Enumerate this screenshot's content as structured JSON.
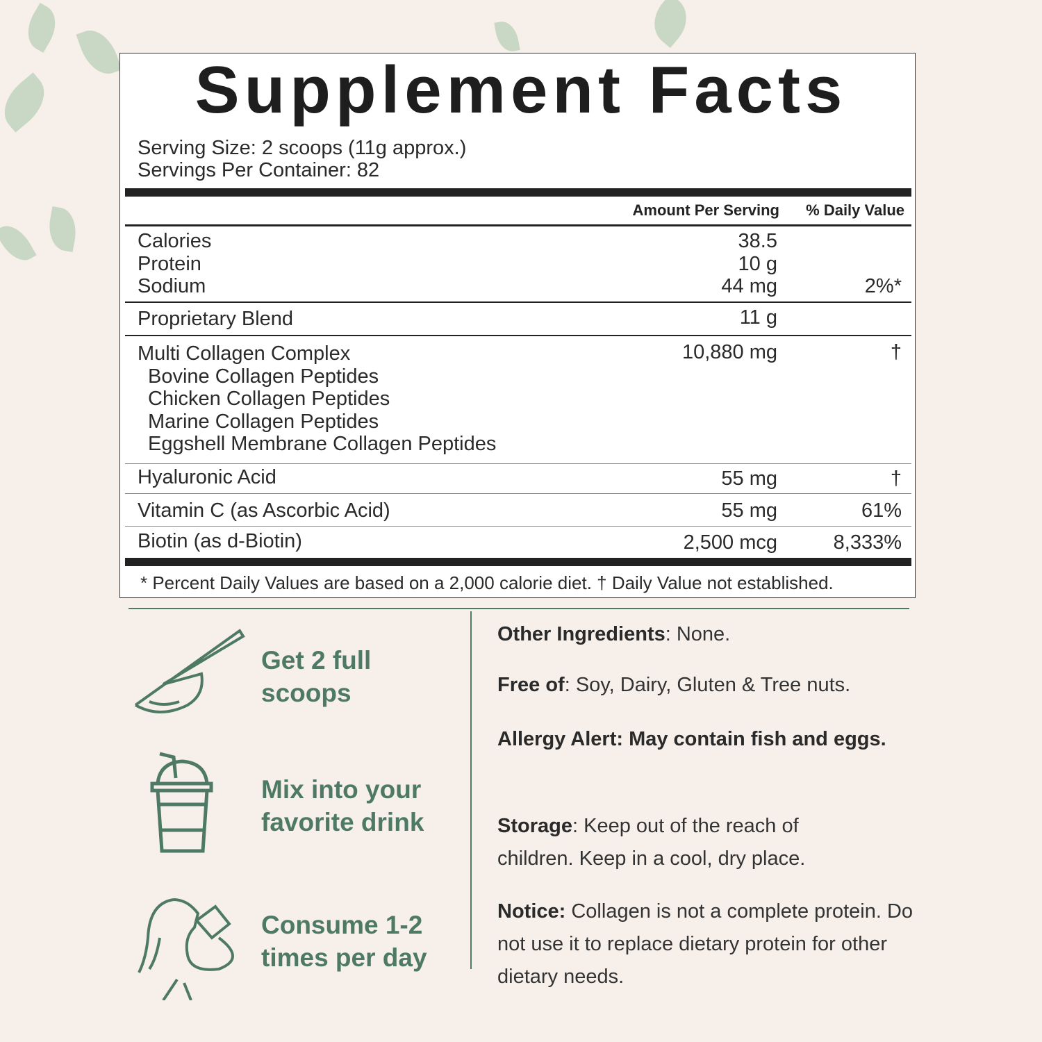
{
  "facts": {
    "title": "Supplement Facts",
    "serving_size": "Serving Size: 2 scoops (11g approx.)",
    "servings_per_container": "Servings Per Container: 82",
    "col_amount": "Amount Per Serving",
    "col_dv": "% Daily Value",
    "rows": [
      {
        "label": "Calories",
        "amount": "38.5",
        "dv": ""
      },
      {
        "label": "Protein",
        "amount": "10 g",
        "dv": ""
      },
      {
        "label": "Sodium",
        "amount": "44 mg",
        "dv": "2%*"
      },
      {
        "label": "Proprietary Blend",
        "amount": "11 g",
        "dv": ""
      },
      {
        "label": "Multi Collagen Complex",
        "amount": "10,880 mg",
        "dv": "†"
      },
      {
        "label": "Hyaluronic Acid",
        "amount": "55 mg",
        "dv": "†"
      },
      {
        "label": "Vitamin C (as Ascorbic Acid)",
        "amount": "55 mg",
        "dv": "61%"
      },
      {
        "label": "Biotin (as d-Biotin)",
        "amount": "2,500 mcg",
        "dv": "8,333%"
      }
    ],
    "sub_items": [
      "Bovine Collagen Peptides",
      "Chicken Collagen Peptides",
      "Marine Collagen Peptides",
      "Eggshell Membrane Collagen Peptides"
    ],
    "footnote": "* Percent Daily Values are based on a 2,000 calorie diet. † Daily Value not established."
  },
  "steps": [
    {
      "icon": "scoop-icon",
      "line1": "Get 2 full",
      "line2": "scoops"
    },
    {
      "icon": "drink-cup-icon",
      "line1": "Mix into your",
      "line2": "favorite drink"
    },
    {
      "icon": "person-drinking-icon",
      "line1": "Consume 1-2",
      "line2": "times per day"
    }
  ],
  "info": [
    {
      "label": "Other Ingredients",
      "sep": ": ",
      "text": "None."
    },
    {
      "label": "Free of",
      "sep": ": ",
      "text": "Soy, Dairy, Gluten & Tree nuts."
    },
    {
      "label": "Allergy Alert: May contain fish and eggs.",
      "sep": "",
      "text": ""
    },
    {
      "label": "Storage",
      "sep": ": ",
      "text": "Keep out of the reach of children. Keep in a cool, dry place."
    },
    {
      "label": "Notice:",
      "sep": " ",
      "text": "Collagen is not a complete protein. Do not use it to replace dietary protein for other dietary needs."
    }
  ],
  "colors": {
    "accent": "#4e7a64",
    "background": "#f6efea"
  }
}
